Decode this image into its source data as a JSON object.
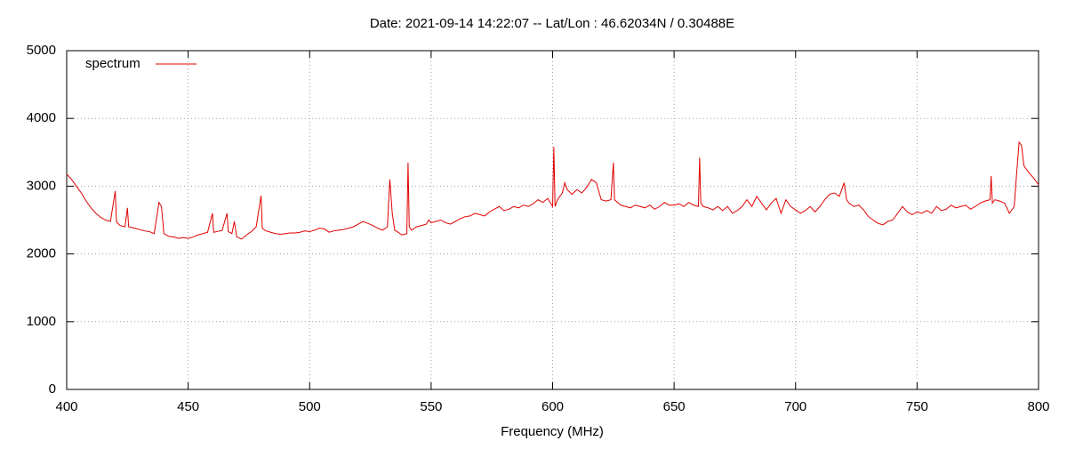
{
  "chart_data": {
    "type": "line",
    "title": "Date: 2021-09-14 14:22:07  --  Lat/Lon : 46.62034N / 0.30488E",
    "xlabel": "Frequency (MHz)",
    "x": [
      400,
      402,
      404,
      406,
      408,
      410,
      412,
      414,
      416,
      418,
      420,
      420.5,
      422,
      424,
      425,
      425.5,
      428,
      430,
      432,
      434,
      436,
      438,
      439,
      440,
      442,
      444,
      446,
      448,
      450,
      452,
      454,
      456,
      458,
      460,
      460.5,
      462,
      464,
      466,
      466.5,
      468,
      469,
      470,
      472,
      474,
      476,
      478,
      480,
      480.5,
      482,
      484,
      486,
      488,
      490,
      492,
      494,
      496,
      498,
      500,
      502,
      504,
      506,
      508,
      510,
      512,
      514,
      516,
      518,
      520,
      522,
      524,
      526,
      528,
      530,
      532,
      533,
      534,
      535,
      536,
      538,
      540,
      540.5,
      541,
      542,
      544,
      546,
      548,
      549,
      550,
      552,
      554,
      556,
      558,
      560,
      562,
      564,
      566,
      568,
      570,
      572,
      574,
      576,
      578,
      580,
      582,
      584,
      586,
      588,
      590,
      592,
      594,
      596,
      598,
      600,
      600.5,
      601,
      602,
      604,
      605,
      606,
      608,
      610,
      612,
      614,
      616,
      618,
      620,
      622,
      624,
      625,
      625.5,
      628,
      630,
      632,
      634,
      636,
      638,
      640,
      642,
      644,
      646,
      648,
      650,
      652,
      654,
      656,
      658,
      660,
      660.5,
      661,
      662,
      664,
      666,
      668,
      670,
      672,
      674,
      676,
      678,
      680,
      682,
      684,
      686,
      688,
      690,
      692,
      694,
      696,
      698,
      700,
      702,
      704,
      706,
      708,
      710,
      712,
      714,
      716,
      718,
      720,
      721,
      722,
      724,
      726,
      728,
      730,
      732,
      734,
      736,
      738,
      740,
      742,
      744,
      746,
      748,
      750,
      752,
      754,
      756,
      758,
      760,
      762,
      764,
      766,
      768,
      770,
      772,
      774,
      776,
      778,
      780,
      780.5,
      781,
      782,
      784,
      786,
      788,
      790,
      791,
      792,
      793,
      794,
      796,
      798,
      800
    ],
    "series": [
      {
        "name": "spectrum",
        "color": "#e00000",
        "values": [
          3180,
          3100,
          3000,
          2900,
          2780,
          2680,
          2600,
          2540,
          2500,
          2480,
          2930,
          2470,
          2420,
          2400,
          2680,
          2400,
          2380,
          2360,
          2340,
          2330,
          2300,
          2760,
          2700,
          2300,
          2260,
          2250,
          2230,
          2240,
          2230,
          2250,
          2280,
          2300,
          2320,
          2600,
          2320,
          2330,
          2350,
          2600,
          2330,
          2300,
          2480,
          2250,
          2220,
          2280,
          2330,
          2400,
          2860,
          2380,
          2340,
          2320,
          2300,
          2290,
          2300,
          2310,
          2310,
          2320,
          2340,
          2330,
          2350,
          2380,
          2370,
          2320,
          2340,
          2350,
          2360,
          2380,
          2400,
          2440,
          2480,
          2450,
          2420,
          2380,
          2350,
          2400,
          3100,
          2600,
          2350,
          2330,
          2280,
          2300,
          3350,
          2400,
          2350,
          2400,
          2420,
          2440,
          2500,
          2460,
          2480,
          2500,
          2460,
          2440,
          2480,
          2520,
          2550,
          2560,
          2600,
          2580,
          2560,
          2620,
          2660,
          2700,
          2640,
          2660,
          2700,
          2680,
          2720,
          2700,
          2740,
          2800,
          2760,
          2820,
          2700,
          3580,
          2700,
          2800,
          2900,
          3050,
          2950,
          2880,
          2950,
          2900,
          2980,
          3100,
          3050,
          2800,
          2780,
          2800,
          3350,
          2800,
          2720,
          2700,
          2680,
          2720,
          2700,
          2680,
          2720,
          2660,
          2700,
          2760,
          2720,
          2720,
          2740,
          2700,
          2760,
          2720,
          2700,
          3420,
          2750,
          2700,
          2680,
          2650,
          2700,
          2640,
          2700,
          2600,
          2640,
          2700,
          2800,
          2700,
          2850,
          2750,
          2650,
          2750,
          2820,
          2600,
          2800,
          2700,
          2650,
          2600,
          2640,
          2700,
          2620,
          2700,
          2800,
          2880,
          2900,
          2850,
          3050,
          2800,
          2750,
          2700,
          2720,
          2650,
          2550,
          2500,
          2450,
          2430,
          2480,
          2500,
          2600,
          2700,
          2620,
          2580,
          2620,
          2600,
          2640,
          2600,
          2700,
          2640,
          2660,
          2720,
          2680,
          2700,
          2720,
          2660,
          2700,
          2750,
          2780,
          2800,
          3150,
          2750,
          2800,
          2780,
          2750,
          2600,
          2700,
          3200,
          3650,
          3600,
          3300,
          3200,
          3120,
          3020
        ]
      }
    ],
    "xlim": [
      400,
      800
    ],
    "xticks": [
      400,
      450,
      500,
      550,
      600,
      650,
      700,
      750,
      800
    ],
    "ylim": [
      0,
      5000
    ],
    "yticks": [
      0,
      1000,
      2000,
      3000,
      4000,
      5000
    ],
    "grid": true,
    "legend": "top-left"
  }
}
